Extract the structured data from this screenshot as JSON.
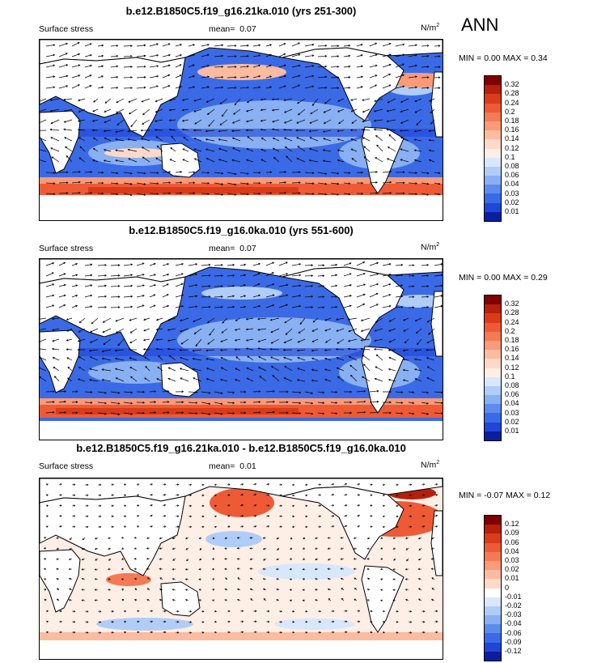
{
  "season": "ANN",
  "units": "N/m",
  "units_exp": "2",
  "variable": "Surface stress",
  "panels": [
    {
      "title": "b.e12.B1850C5.f19_g16.21ka.010 (yrs 251-300)",
      "mean_label": "mean=",
      "mean": "0.07",
      "minmax_label": "MIN =  0.00 MAX =  0.34"
    },
    {
      "title": "b.e12.B1850C5.f19_g16.0ka.010 (yrs 551-600)",
      "mean_label": "mean=",
      "mean": "0.07",
      "minmax_label": "MIN =  0.00 MAX =  0.29"
    },
    {
      "title": "b.e12.B1850C5.f19_g16.21ka.010 - b.e12.B1850C5.f19_g16.0ka.010",
      "mean_label": "mean=",
      "mean": "0.01",
      "minmax_label": "MIN = -0.07 MAX =  0.12"
    }
  ],
  "colorbars": {
    "abs_labels": [
      "0.32",
      "0.28",
      "0.24",
      "0.2",
      "0.18",
      "0.16",
      "0.14",
      "0.12",
      "0.1",
      "0.08",
      "0.06",
      "0.04",
      "0.03",
      "0.02",
      "0.01"
    ],
    "abs_colors": [
      "#7f0000",
      "#b5200a",
      "#d93c1a",
      "#ee5a36",
      "#f47a55",
      "#f99a78",
      "#fdbba0",
      "#fdd9c8",
      "#fdeee6",
      "#d8e7fb",
      "#b0cdf7",
      "#88b0f2",
      "#5c8ced",
      "#3b6ae6",
      "#1f46d8",
      "#0a1f9e"
    ],
    "diff_labels": [
      "0.12",
      "0.09",
      "0.06",
      "0.04",
      "0.03",
      "0.02",
      "0.01",
      "0",
      "-0.01",
      "-0.02",
      "-0.03",
      "-0.04",
      "-0.06",
      "-0.09",
      "-0.12"
    ],
    "diff_colors": [
      "#7f0000",
      "#b5200a",
      "#d93c1a",
      "#ee5a36",
      "#f47a55",
      "#f99a78",
      "#fdbba0",
      "#fdd9c8",
      "#ffffff",
      "#d8e7fb",
      "#b0cdf7",
      "#88b0f2",
      "#5c8ced",
      "#3b6ae6",
      "#1f46d8",
      "#0a1f9e"
    ]
  }
}
